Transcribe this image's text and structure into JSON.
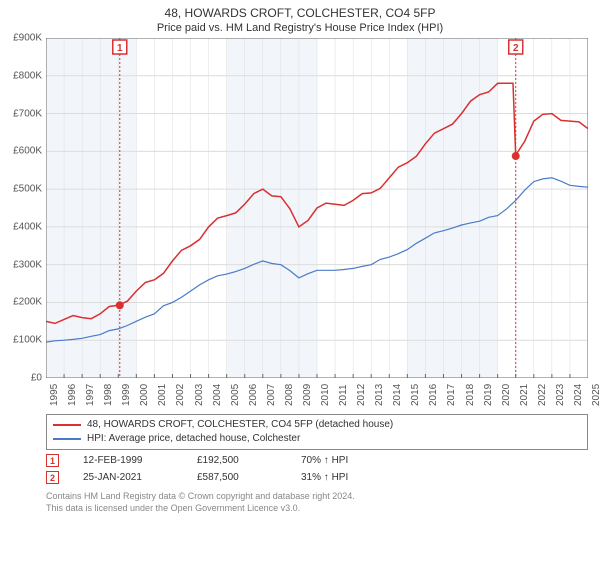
{
  "title": "48, HOWARDS CROFT, COLCHESTER, CO4 5FP",
  "subtitle": "Price paid vs. HM Land Registry's House Price Index (HPI)",
  "chart": {
    "type": "line",
    "background_color": "#ffffff",
    "altband_color": "#f2f6fb",
    "grid_color": "#dcdcdc",
    "axis_color": "#666666",
    "ylim": [
      0,
      900000
    ],
    "ytick_step": 100000,
    "y_tick_labels": [
      "£0",
      "£100K",
      "£200K",
      "£300K",
      "£400K",
      "£500K",
      "£600K",
      "£700K",
      "£800K",
      "£900K"
    ],
    "x_years": [
      1995,
      1996,
      1997,
      1998,
      1999,
      2000,
      2001,
      2002,
      2003,
      2004,
      2005,
      2006,
      2007,
      2008,
      2009,
      2010,
      2011,
      2012,
      2013,
      2014,
      2015,
      2016,
      2017,
      2018,
      2019,
      2020,
      2021,
      2022,
      2023,
      2024,
      2025
    ],
    "x_min": 1995,
    "x_max": 2025,
    "series": [
      {
        "name": "price_paid",
        "label": "48, HOWARDS CROFT, COLCHESTER, CO4 5FP (detached house)",
        "color": "#d93030",
        "line_width": 1.5,
        "points_yearly": [
          150000,
          155000,
          160000,
          170000,
          192500,
          230000,
          260000,
          310000,
          350000,
          400000,
          430000,
          460000,
          500000,
          480000,
          400000,
          450000,
          460000,
          470000,
          490000,
          530000,
          570000,
          620000,
          660000,
          700000,
          750000,
          780000,
          590000,
          680000,
          700000,
          680000,
          660000
        ]
      },
      {
        "name": "hpi",
        "label": "HPI: Average price, detached house, Colchester",
        "color": "#4a7bc8",
        "line_width": 1.2,
        "points_yearly": [
          95000,
          100000,
          105000,
          115000,
          130000,
          150000,
          170000,
          200000,
          230000,
          260000,
          275000,
          290000,
          310000,
          300000,
          265000,
          285000,
          285000,
          290000,
          300000,
          320000,
          340000,
          370000,
          390000,
          405000,
          415000,
          430000,
          470000,
          520000,
          530000,
          510000,
          505000
        ]
      }
    ],
    "sale_markers": [
      {
        "n": "1",
        "year": 1999,
        "month": 2,
        "value": 192500,
        "color": "#d93030"
      },
      {
        "n": "2",
        "year": 2021,
        "month": 1,
        "value": 587500,
        "color": "#d93030"
      }
    ],
    "sale_marker_2020_spike": 780000
  },
  "legend": {
    "series1": "48, HOWARDS CROFT, COLCHESTER, CO4 5FP (detached house)",
    "series2": "HPI: Average price, detached house, Colchester"
  },
  "sales": [
    {
      "n": "1",
      "date": "12-FEB-1999",
      "price": "£192,500",
      "pct": "70% ↑ HPI",
      "color": "#d93030"
    },
    {
      "n": "2",
      "date": "25-JAN-2021",
      "price": "£587,500",
      "pct": "31% ↑ HPI",
      "color": "#d93030"
    }
  ],
  "footnote1": "Contains HM Land Registry data © Crown copyright and database right 2024.",
  "footnote2": "This data is licensed under the Open Government Licence v3.0."
}
